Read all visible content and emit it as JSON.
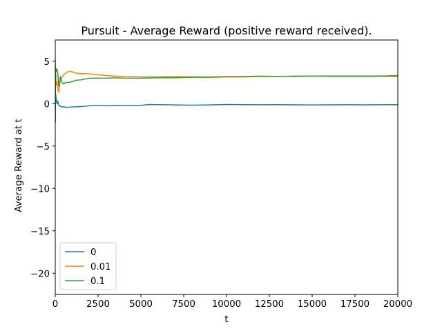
{
  "chart_data": {
    "type": "line",
    "title": "Pursuit - Average Reward (positive reward received).",
    "xlabel": "t",
    "ylabel": "Average Reward at t",
    "xlim": [
      0,
      20000
    ],
    "ylim": [
      -22.5,
      7.5
    ],
    "xticks": [
      0,
      2500,
      5000,
      7500,
      10000,
      12500,
      15000,
      17500,
      20000
    ],
    "yticks": [
      -20,
      -15,
      -10,
      -5,
      0,
      5
    ],
    "xtick_labels": [
      "0",
      "2500",
      "5000",
      "7500",
      "10000",
      "12500",
      "15000",
      "17500",
      "20000"
    ],
    "ytick_labels": [
      "−20",
      "−15",
      "−10",
      "−5",
      "0",
      "5"
    ],
    "grid": false,
    "legend_position": "lower-left",
    "series": [
      {
        "name": "0",
        "color": "#1f77b4",
        "x": [
          0,
          20,
          50,
          100,
          150,
          200,
          300,
          400,
          500,
          600,
          800,
          1000,
          1200,
          1500,
          2000,
          2500,
          3000,
          3500,
          4000,
          4500,
          5000,
          5500,
          6000,
          7000,
          8000,
          9000,
          10000,
          11000,
          12000,
          13000,
          14000,
          15000,
          16000,
          17000,
          18000,
          19000,
          20000
        ],
        "y": [
          -2.3,
          1.2,
          0.6,
          0.0,
          0.3,
          -0.2,
          -0.3,
          -0.4,
          -0.35,
          -0.45,
          -0.42,
          -0.4,
          -0.38,
          -0.35,
          -0.25,
          -0.2,
          -0.25,
          -0.2,
          -0.22,
          -0.2,
          -0.2,
          -0.1,
          -0.12,
          -0.15,
          -0.18,
          -0.15,
          -0.1,
          -0.12,
          -0.13,
          -0.12,
          -0.14,
          -0.15,
          -0.14,
          -0.13,
          -0.14,
          -0.13,
          -0.12
        ]
      },
      {
        "name": "0.01",
        "color": "#ff7f0e",
        "x": [
          0,
          20,
          50,
          100,
          150,
          200,
          300,
          400,
          500,
          600,
          800,
          1000,
          1200,
          1500,
          2000,
          2500,
          3000,
          3500,
          4000,
          5000,
          6000,
          7000,
          8000,
          9000,
          10000,
          11000,
          12000,
          13000,
          14000,
          15000,
          16000,
          17000,
          18000,
          19000,
          20000
        ],
        "y": [
          5.3,
          4.0,
          2.2,
          2.6,
          1.7,
          1.3,
          2.8,
          3.1,
          3.4,
          3.6,
          3.8,
          3.75,
          3.6,
          3.55,
          3.5,
          3.4,
          3.3,
          3.25,
          3.2,
          3.15,
          3.15,
          3.2,
          3.15,
          3.15,
          3.2,
          3.2,
          3.25,
          3.2,
          3.25,
          3.25,
          3.2,
          3.2,
          3.2,
          3.2,
          3.2
        ]
      },
      {
        "name": "0.1",
        "color": "#2ca02c",
        "x": [
          0,
          20,
          50,
          100,
          150,
          200,
          300,
          400,
          500,
          600,
          800,
          1000,
          1200,
          1500,
          2000,
          2500,
          3000,
          3500,
          4000,
          5000,
          6000,
          7000,
          8000,
          9000,
          10000,
          11000,
          12000,
          13000,
          14000,
          15000,
          16000,
          17000,
          18000,
          19000,
          20000
        ],
        "y": [
          -2.3,
          4.2,
          3.8,
          4.1,
          3.6,
          2.0,
          3.2,
          2.5,
          2.3,
          2.5,
          2.5,
          2.6,
          2.75,
          2.8,
          3.0,
          3.0,
          3.0,
          3.05,
          3.0,
          3.0,
          3.05,
          3.05,
          3.1,
          3.1,
          3.15,
          3.15,
          3.2,
          3.2,
          3.2,
          3.25,
          3.25,
          3.25,
          3.25,
          3.25,
          3.3
        ]
      }
    ]
  }
}
